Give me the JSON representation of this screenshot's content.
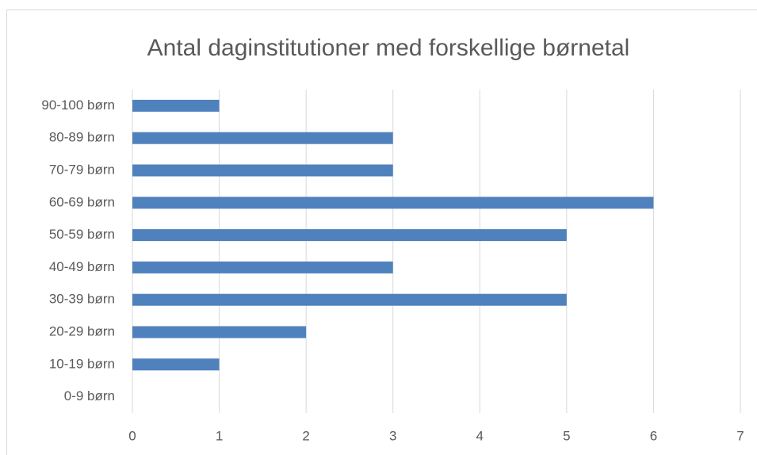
{
  "chart_data": {
    "type": "bar",
    "orientation": "horizontal",
    "title": "Antal daginstitutioner med forskellige børnetal",
    "categories": [
      "0-9 børn",
      "10-19 børn",
      "20-29 børn",
      "30-39 børn",
      "40-49 børn",
      "50-59 børn",
      "60-69 børn",
      "70-79 børn",
      "80-89 børn",
      "90-100 børn"
    ],
    "values": [
      0,
      1,
      2,
      5,
      3,
      5,
      6,
      3,
      3,
      1
    ],
    "color": "#4f81bd",
    "xlim": [
      0,
      7
    ],
    "xticks": [
      0,
      1,
      2,
      3,
      4,
      5,
      6,
      7
    ],
    "grid": true
  }
}
